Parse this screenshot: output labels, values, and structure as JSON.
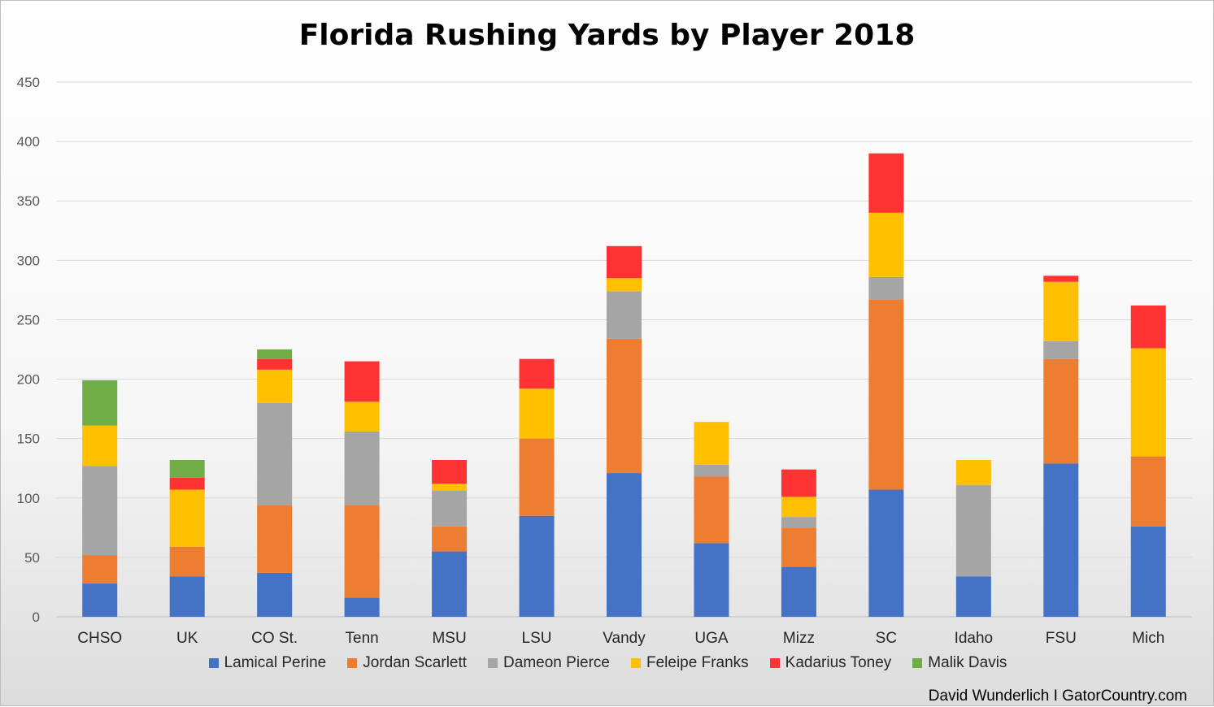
{
  "chart_data": {
    "type": "bar",
    "stacked": true,
    "title": "Florida Rushing Yards by Player 2018",
    "xlabel": "",
    "ylabel": "",
    "ylim": [
      0,
      450
    ],
    "yticks": [
      0,
      50,
      100,
      150,
      200,
      250,
      300,
      350,
      400,
      450
    ],
    "grid": true,
    "legend_position": "bottom",
    "categories": [
      "CHSO",
      "UK",
      "CO St.",
      "Tenn",
      "MSU",
      "LSU",
      "Vandy",
      "UGA",
      "Mizz",
      "SC",
      "Idaho",
      "FSU",
      "Mich"
    ],
    "series": [
      {
        "name": "Lamical Perine",
        "color": "#4472C4",
        "values": [
          28,
          34,
          37,
          16,
          55,
          85,
          121,
          62,
          42,
          107,
          34,
          129,
          76
        ]
      },
      {
        "name": "Jordan Scarlett",
        "color": "#ED7D31",
        "values": [
          24,
          25,
          57,
          78,
          21,
          65,
          113,
          56,
          33,
          160,
          0,
          88,
          59
        ]
      },
      {
        "name": "Dameon Pierce",
        "color": "#A5A5A5",
        "values": [
          75,
          0,
          86,
          62,
          30,
          0,
          40,
          10,
          9,
          19,
          77,
          15,
          0
        ]
      },
      {
        "name": "Feleipe Franks",
        "color": "#FFC000",
        "values": [
          34,
          48,
          28,
          25,
          6,
          42,
          11,
          36,
          17,
          54,
          21,
          50,
          91
        ]
      },
      {
        "name": "Kadarius Toney",
        "color": "#FF3333",
        "values": [
          0,
          10,
          9,
          34,
          20,
          25,
          27,
          0,
          23,
          50,
          0,
          5,
          36
        ]
      },
      {
        "name": "Malik Davis",
        "color": "#70AD47",
        "values": [
          38,
          15,
          8,
          0,
          0,
          0,
          0,
          0,
          0,
          0,
          0,
          0,
          0
        ]
      }
    ]
  },
  "credit": "David Wunderlich I GatorCountry.com"
}
